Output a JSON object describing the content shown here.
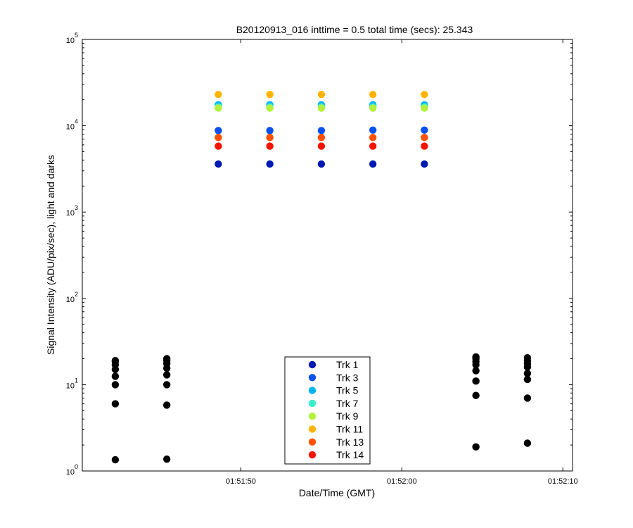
{
  "chart_data": {
    "type": "scatter",
    "title": "B20120913_016 inttime = 0.5 total time (secs): 25.343",
    "xlabel": "Date/Time (GMT)",
    "ylabel": "Signal Intensity (ADU/pix/sec), light and darks",
    "yscale": "log",
    "ylim": [
      1,
      100000
    ],
    "xlim_seconds": [
      40.15,
      70.6
    ],
    "x_unit": "seconds after 01:51:00",
    "x_ticks": [
      {
        "value": 50,
        "label": "01:51:50"
      },
      {
        "value": 60,
        "label": "01:52:00"
      },
      {
        "value": 70,
        "label": "01:52:10"
      }
    ],
    "y_ticks": [
      {
        "value": 1,
        "base": "10",
        "exp": "0"
      },
      {
        "value": 10,
        "base": "10",
        "exp": "1"
      },
      {
        "value": 100,
        "base": "10",
        "exp": "2"
      },
      {
        "value": 1000,
        "base": "10",
        "exp": "3"
      },
      {
        "value": 10000,
        "base": "10",
        "exp": "4"
      },
      {
        "value": 100000,
        "base": "10",
        "exp": "5"
      }
    ],
    "legend_position": "bottom-center",
    "light_x": [
      48.6,
      51.8,
      55.0,
      58.2,
      61.4
    ],
    "series": [
      {
        "name": "Trk 1",
        "color": "#0019b3",
        "values": [
          3600,
          3600,
          3600,
          3600,
          3600
        ]
      },
      {
        "name": "Trk 3",
        "color": "#0a50ee",
        "values": [
          8800,
          8800,
          8800,
          8900,
          8900
        ]
      },
      {
        "name": "Trk 5",
        "color": "#00b4f0",
        "values": [
          17500,
          17500,
          17500,
          17500,
          17500
        ]
      },
      {
        "name": "Trk 7",
        "color": "#38f0c8",
        "values": [
          16500,
          16500,
          16500,
          16500,
          16500
        ]
      },
      {
        "name": "Trk 9",
        "color": "#b4f03c",
        "values": [
          16000,
          16000,
          16000,
          16000,
          16000
        ]
      },
      {
        "name": "Trk 11",
        "color": "#ffb400",
        "values": [
          23000,
          23000,
          23000,
          23000,
          23000
        ]
      },
      {
        "name": "Trk 13",
        "color": "#ff5000",
        "values": [
          7300,
          7300,
          7300,
          7300,
          7300
        ]
      },
      {
        "name": "Trk 14",
        "color": "#f51400",
        "values": [
          5800,
          5800,
          5800,
          5800,
          5800
        ]
      }
    ],
    "darks": {
      "name": "darks",
      "color": "#000000",
      "groups": [
        {
          "x": 42.2,
          "values": [
            1.35,
            6.0,
            10.0,
            12.5,
            15.0,
            17.0,
            18.5,
            19.0
          ]
        },
        {
          "x": 45.4,
          "values": [
            1.37,
            5.8,
            10.0,
            13.0,
            15.5,
            17.5,
            19.0,
            20.0
          ]
        },
        {
          "x": 64.6,
          "values": [
            1.9,
            7.5,
            11.0,
            14.5,
            17.0,
            18.5,
            20.0,
            21.0
          ]
        },
        {
          "x": 67.8,
          "values": [
            2.1,
            7.0,
            11.5,
            13.5,
            16.0,
            17.5,
            19.0,
            20.5
          ]
        }
      ]
    }
  }
}
